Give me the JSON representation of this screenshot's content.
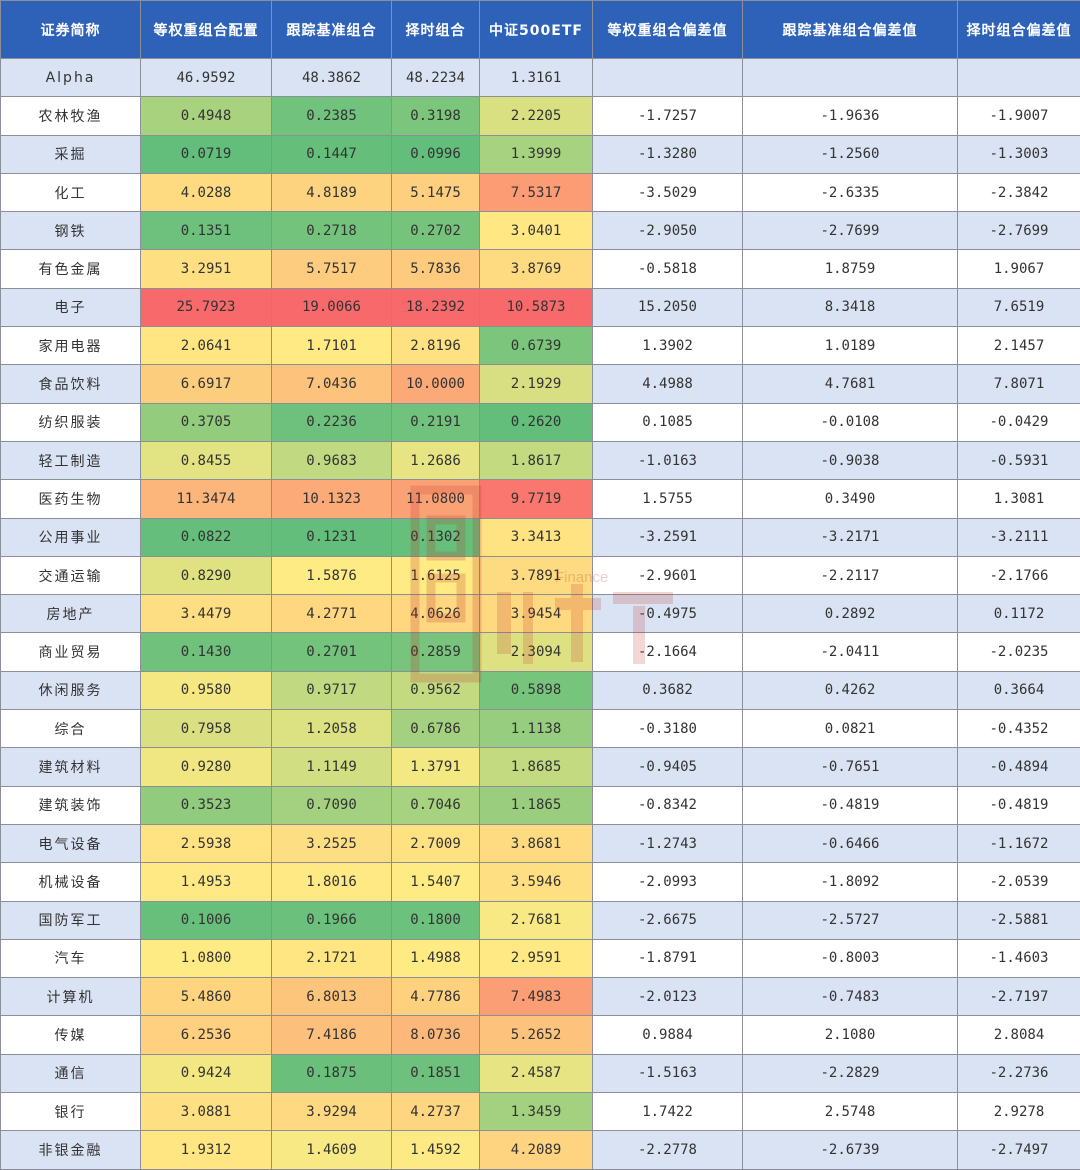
{
  "chart_data": {
    "type": "table",
    "columns": [
      "证券简称",
      "等权重组合配置",
      "跟踪基准组合",
      "择时组合",
      "中证500ETF",
      "等权重组合偏差值",
      "跟踪基准组合偏差值",
      "择时组合偏差值"
    ],
    "rows": [
      [
        "Alpha",
        "46.9592",
        "48.3862",
        "48.2234",
        "1.3161",
        "",
        "",
        ""
      ],
      [
        "农林牧渔",
        "0.4948",
        "0.2385",
        "0.3198",
        "2.2205",
        "-1.7257",
        "-1.9636",
        "-1.9007"
      ],
      [
        "采掘",
        "0.0719",
        "0.1447",
        "0.0996",
        "1.3999",
        "-1.3280",
        "-1.2560",
        "-1.3003"
      ],
      [
        "化工",
        "4.0288",
        "4.8189",
        "5.1475",
        "7.5317",
        "-3.5029",
        "-2.6335",
        "-2.3842"
      ],
      [
        "钢铁",
        "0.1351",
        "0.2718",
        "0.2702",
        "3.0401",
        "-2.9050",
        "-2.7699",
        "-2.7699"
      ],
      [
        "有色金属",
        "3.2951",
        "5.7517",
        "5.7836",
        "3.8769",
        "-0.5818",
        "1.8759",
        "1.9067"
      ],
      [
        "电子",
        "25.7923",
        "19.0066",
        "18.2392",
        "10.5873",
        "15.2050",
        "8.3418",
        "7.6519"
      ],
      [
        "家用电器",
        "2.0641",
        "1.7101",
        "2.8196",
        "0.6739",
        "1.3902",
        "1.0189",
        "2.1457"
      ],
      [
        "食品饮料",
        "6.6917",
        "7.0436",
        "10.0000",
        "2.1929",
        "4.4988",
        "4.7681",
        "7.8071"
      ],
      [
        "纺织服装",
        "0.3705",
        "0.2236",
        "0.2191",
        "0.2620",
        "0.1085",
        "-0.0108",
        "-0.0429"
      ],
      [
        "轻工制造",
        "0.8455",
        "0.9683",
        "1.2686",
        "1.8617",
        "-1.0163",
        "-0.9038",
        "-0.5931"
      ],
      [
        "医药生物",
        "11.3474",
        "10.1323",
        "11.0800",
        "9.7719",
        "1.5755",
        "0.3490",
        "1.3081"
      ],
      [
        "公用事业",
        "0.0822",
        "0.1231",
        "0.1302",
        "3.3413",
        "-3.2591",
        "-3.2171",
        "-3.2111"
      ],
      [
        "交通运输",
        "0.8290",
        "1.5876",
        "1.6125",
        "3.7891",
        "-2.9601",
        "-2.2117",
        "-2.1766"
      ],
      [
        "房地产",
        "3.4479",
        "4.2771",
        "4.0626",
        "3.9454",
        "-0.4975",
        "0.2892",
        "0.1172"
      ],
      [
        "商业贸易",
        "0.1430",
        "0.2701",
        "0.2859",
        "2.3094",
        "-2.1664",
        "-2.0411",
        "-2.0235"
      ],
      [
        "休闲服务",
        "0.9580",
        "0.9717",
        "0.9562",
        "0.5898",
        "0.3682",
        "0.4262",
        "0.3664"
      ],
      [
        "综合",
        "0.7958",
        "1.2058",
        "0.6786",
        "1.1138",
        "-0.3180",
        "0.0821",
        "-0.4352"
      ],
      [
        "建筑材料",
        "0.9280",
        "1.1149",
        "1.3791",
        "1.8685",
        "-0.9405",
        "-0.7651",
        "-0.4894"
      ],
      [
        "建筑装饰",
        "0.3523",
        "0.7090",
        "0.7046",
        "1.1865",
        "-0.8342",
        "-0.4819",
        "-0.4819"
      ],
      [
        "电气设备",
        "2.5938",
        "3.2525",
        "2.7009",
        "3.8681",
        "-1.2743",
        "-0.6466",
        "-1.1672"
      ],
      [
        "机械设备",
        "1.4953",
        "1.8016",
        "1.5407",
        "3.5946",
        "-2.0993",
        "-1.8092",
        "-2.0539"
      ],
      [
        "国防军工",
        "0.1006",
        "0.1966",
        "0.1800",
        "2.7681",
        "-2.6675",
        "-2.5727",
        "-2.5881"
      ],
      [
        "汽车",
        "1.0800",
        "2.1721",
        "1.4988",
        "2.9591",
        "-1.8791",
        "-0.8003",
        "-1.4603"
      ],
      [
        "计算机",
        "5.4860",
        "6.8013",
        "4.7786",
        "7.4983",
        "-2.0123",
        "-0.7483",
        "-2.7197"
      ],
      [
        "传媒",
        "6.2536",
        "7.4186",
        "8.0736",
        "5.2652",
        "0.9884",
        "2.1080",
        "2.8084"
      ],
      [
        "通信",
        "0.9424",
        "0.1875",
        "0.1851",
        "2.4587",
        "-1.5163",
        "-2.2829",
        "-2.2736"
      ],
      [
        "银行",
        "3.0881",
        "3.9294",
        "4.2737",
        "1.3459",
        "1.7422",
        "2.5748",
        "2.9278"
      ],
      [
        "非银金融",
        "1.9312",
        "1.4609",
        "1.4592",
        "4.2089",
        "-2.2778",
        "-2.6739",
        "-2.7497"
      ]
    ],
    "heatmap_columns": [
      1,
      2,
      3,
      4
    ],
    "heatmap_colors": {
      "low": "#63be7b",
      "mid": "#ffeb84",
      "high": "#f8696b"
    }
  },
  "watermark": {
    "text": "Finance",
    "icon": "finance-watermark-logo"
  }
}
